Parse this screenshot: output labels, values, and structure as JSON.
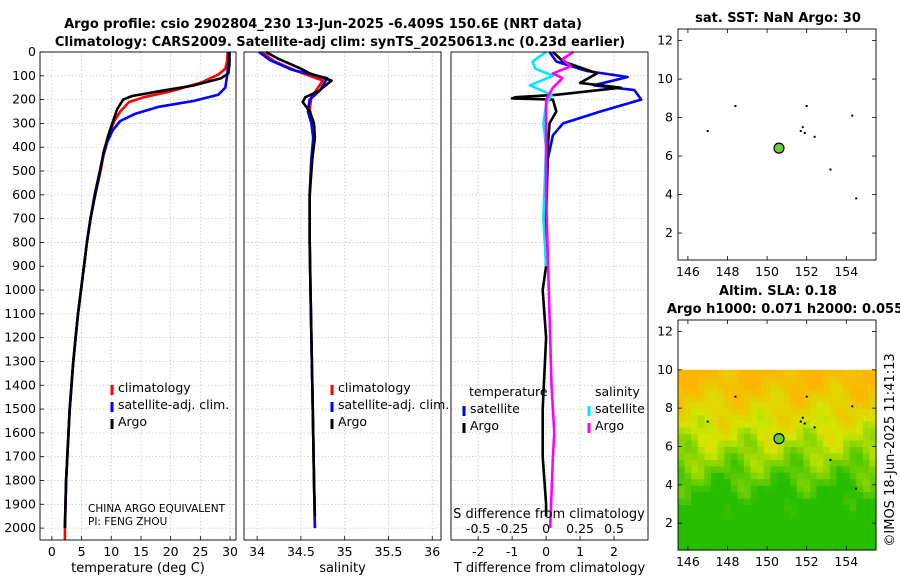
{
  "titles": {
    "line1": "Argo profile: csio 2902804_230 13-Jun-2025 -6.409S 150.6E (NRT data)",
    "line2": "Climatology: CARS2009. Satellite-adj clim: synTS_20250613.nc (0.23d earlier)"
  },
  "stamp": "©IMOS 18-Jun-2025 11:41:13",
  "colors": {
    "climatology": "#ff0000",
    "satellite": "#0000ff",
    "argo": "#000000",
    "sal_satellite": "#00e5ff",
    "sal_argo": "#ff00ff"
  },
  "chart_data": [
    {
      "type": "line",
      "name": "temperature-profile",
      "xlabel": "temperature (deg C)",
      "ylabel": "",
      "xlim": [
        -2,
        31
      ],
      "ylim": [
        2050,
        0
      ],
      "xticks": [
        "0",
        "5",
        "10",
        "15",
        "20",
        "25",
        "30"
      ],
      "yticks": [
        "0",
        "100",
        "200",
        "300",
        "400",
        "500",
        "600",
        "700",
        "800",
        "900",
        "1000",
        "1100",
        "1200",
        "1300",
        "1400",
        "1500",
        "1600",
        "1700",
        "1800",
        "1900",
        "2000"
      ],
      "legend": [
        "climatology",
        "satellite-adj. clim.",
        "Argo"
      ],
      "annotations": [
        "CHINA ARGO EQUIVALENT",
        "PI: FENG ZHOU"
      ],
      "series": [
        {
          "name": "climatology",
          "points": [
            [
              29.6,
              0
            ],
            [
              29.5,
              40
            ],
            [
              29.2,
              70
            ],
            [
              28,
              95
            ],
            [
              25,
              130
            ],
            [
              20,
              165
            ],
            [
              15.5,
              190
            ],
            [
              13,
              210
            ],
            [
              11.5,
              250
            ],
            [
              10.5,
              290
            ],
            [
              9.6,
              350
            ],
            [
              8.8,
              420
            ],
            [
              8.2,
              500
            ],
            [
              7.3,
              600
            ],
            [
              6.5,
              700
            ],
            [
              5.9,
              800
            ],
            [
              5.4,
              900
            ],
            [
              4.9,
              1000
            ],
            [
              4.4,
              1100
            ],
            [
              4.0,
              1200
            ],
            [
              3.6,
              1300
            ],
            [
              3.3,
              1400
            ],
            [
              3.0,
              1500
            ],
            [
              2.8,
              1600
            ],
            [
              2.6,
              1700
            ],
            [
              2.4,
              1800
            ],
            [
              2.3,
              1900
            ],
            [
              2.2,
              2000
            ],
            [
              2.2,
              2050
            ]
          ]
        },
        {
          "name": "satellite-adj. clim.",
          "points": [
            [
              29.8,
              0
            ],
            [
              29.7,
              50
            ],
            [
              29.5,
              100
            ],
            [
              29.2,
              150
            ],
            [
              28,
              180
            ],
            [
              24,
              205
            ],
            [
              18,
              230
            ],
            [
              14,
              260
            ],
            [
              11.5,
              290
            ],
            [
              10.2,
              330
            ],
            [
              9.3,
              380
            ],
            [
              8.6,
              440
            ],
            [
              7.9,
              520
            ],
            [
              7.2,
              600
            ],
            [
              6.5,
              700
            ],
            [
              5.9,
              800
            ],
            [
              5.4,
              900
            ],
            [
              4.9,
              1000
            ],
            [
              4.4,
              1100
            ],
            [
              4.0,
              1200
            ],
            [
              3.6,
              1300
            ],
            [
              3.3,
              1400
            ],
            [
              3.0,
              1500
            ],
            [
              2.8,
              1600
            ],
            [
              2.6,
              1700
            ],
            [
              2.4,
              1800
            ],
            [
              2.3,
              1900
            ],
            [
              2.2,
              2000
            ]
          ]
        },
        {
          "name": "Argo",
          "points": [
            [
              29.9,
              0
            ],
            [
              29.9,
              50
            ],
            [
              29.7,
              90
            ],
            [
              28.5,
              110
            ],
            [
              24,
              140
            ],
            [
              18,
              165
            ],
            [
              13.5,
              185
            ],
            [
              12,
              200
            ],
            [
              11,
              240
            ],
            [
              10.3,
              290
            ],
            [
              9.5,
              350
            ],
            [
              8.7,
              420
            ],
            [
              8.1,
              500
            ],
            [
              7.3,
              600
            ],
            [
              6.5,
              700
            ],
            [
              5.9,
              800
            ],
            [
              5.4,
              900
            ],
            [
              4.9,
              1000
            ],
            [
              4.4,
              1100
            ],
            [
              4.0,
              1200
            ],
            [
              3.6,
              1300
            ],
            [
              3.3,
              1400
            ],
            [
              3.0,
              1500
            ],
            [
              2.8,
              1600
            ],
            [
              2.6,
              1700
            ],
            [
              2.4,
              1800
            ],
            [
              2.3,
              1900
            ],
            [
              2.2,
              2000
            ]
          ]
        }
      ]
    },
    {
      "type": "line",
      "name": "salinity-profile",
      "xlabel": "salinity",
      "xlim": [
        33.85,
        36.1
      ],
      "ylim": [
        2050,
        0
      ],
      "xticks": [
        "34",
        "34.5",
        "35",
        "35.5",
        "36"
      ],
      "legend": [
        "climatology",
        "satellite-adj. clim.",
        "Argo"
      ],
      "series": [
        {
          "name": "climatology",
          "points": [
            [
              34.05,
              0
            ],
            [
              34.2,
              40
            ],
            [
              34.45,
              80
            ],
            [
              34.75,
              120
            ],
            [
              34.62,
              190
            ],
            [
              34.6,
              240
            ],
            [
              34.63,
              290
            ],
            [
              34.65,
              350
            ],
            [
              34.62,
              450
            ],
            [
              34.6,
              600
            ],
            [
              34.6,
              800
            ],
            [
              34.61,
              1000
            ],
            [
              34.62,
              1200
            ],
            [
              34.63,
              1400
            ],
            [
              34.64,
              1600
            ],
            [
              34.65,
              1800
            ],
            [
              34.66,
              2000
            ]
          ]
        },
        {
          "name": "satellite-adj. clim.",
          "points": [
            [
              34.02,
              0
            ],
            [
              34.15,
              35
            ],
            [
              34.4,
              75
            ],
            [
              34.8,
              110
            ],
            [
              34.72,
              160
            ],
            [
              34.6,
              200
            ],
            [
              34.58,
              250
            ],
            [
              34.62,
              300
            ],
            [
              34.64,
              360
            ],
            [
              34.62,
              450
            ],
            [
              34.6,
              600
            ],
            [
              34.6,
              800
            ],
            [
              34.61,
              1000
            ],
            [
              34.62,
              1200
            ],
            [
              34.63,
              1400
            ],
            [
              34.64,
              1600
            ],
            [
              34.65,
              1800
            ],
            [
              34.66,
              2000
            ]
          ]
        },
        {
          "name": "Argo",
          "points": [
            [
              34.1,
              0
            ],
            [
              34.25,
              30
            ],
            [
              34.5,
              70
            ],
            [
              34.6,
              90
            ],
            [
              34.85,
              120
            ],
            [
              34.7,
              165
            ],
            [
              34.55,
              190
            ],
            [
              34.52,
              210
            ],
            [
              34.6,
              250
            ],
            [
              34.65,
              300
            ],
            [
              34.66,
              360
            ],
            [
              34.63,
              450
            ],
            [
              34.6,
              600
            ],
            [
              34.6,
              800
            ],
            [
              34.61,
              1000
            ],
            [
              34.62,
              1200
            ],
            [
              34.63,
              1400
            ],
            [
              34.64,
              1600
            ],
            [
              34.65,
              1800
            ],
            [
              34.66,
              1950
            ]
          ]
        }
      ]
    },
    {
      "type": "line",
      "name": "difference-profile",
      "xlabel": "T difference from climatology",
      "xlabel_top": "S difference from climatology",
      "xlim": [
        -2.8,
        3.0
      ],
      "ylim": [
        2050,
        0
      ],
      "xticks": [
        "-2",
        "-1",
        "0",
        "1",
        "2"
      ],
      "s_ticks": [
        "-0.5",
        "-0.25",
        "0",
        "0.25",
        "0.5"
      ],
      "s_scale": 4,
      "legend_titles": [
        "temperature",
        "salinity"
      ],
      "legend_t": [
        "satellite",
        "Argo"
      ],
      "legend_s": [
        "satellite",
        "Argo"
      ],
      "series": [
        {
          "name": "T satellite",
          "points": [
            [
              0.1,
              0
            ],
            [
              0.3,
              40
            ],
            [
              1.2,
              80
            ],
            [
              2.4,
              105
            ],
            [
              1.4,
              140
            ],
            [
              2.6,
              160
            ],
            [
              2.8,
              200
            ],
            [
              1.6,
              250
            ],
            [
              0.5,
              300
            ],
            [
              0.2,
              350
            ],
            [
              0.05,
              450
            ],
            [
              0,
              700
            ],
            [
              0,
              900
            ]
          ]
        },
        {
          "name": "T Argo",
          "points": [
            [
              0.2,
              0
            ],
            [
              0.5,
              40
            ],
            [
              1.5,
              90
            ],
            [
              1.0,
              130
            ],
            [
              2.2,
              150
            ],
            [
              0.3,
              180
            ],
            [
              -0.9,
              190
            ],
            [
              -1.0,
              195
            ],
            [
              0.2,
              200
            ],
            [
              0.3,
              250
            ],
            [
              0.1,
              300
            ],
            [
              0.05,
              400
            ],
            [
              0,
              600
            ],
            [
              0,
              900
            ],
            [
              -0.1,
              1000
            ],
            [
              0,
              1200
            ],
            [
              -0.1,
              1500
            ],
            [
              -0.1,
              1700
            ],
            [
              0,
              1900
            ],
            [
              0,
              1950
            ]
          ]
        },
        {
          "name": "S satellite",
          "points": [
            [
              0,
              0
            ],
            [
              -0.1,
              40
            ],
            [
              -0.08,
              70
            ],
            [
              0.05,
              100
            ],
            [
              -0.12,
              140
            ],
            [
              0.04,
              180
            ],
            [
              0,
              220
            ],
            [
              -0.02,
              300
            ],
            [
              0,
              400
            ],
            [
              -0.02,
              700
            ],
            [
              0,
              900
            ]
          ]
        },
        {
          "name": "S Argo",
          "points": [
            [
              0.2,
              0
            ],
            [
              0.12,
              30
            ],
            [
              0.18,
              60
            ],
            [
              0.05,
              90
            ],
            [
              0.12,
              110
            ],
            [
              0.05,
              150
            ],
            [
              0,
              200
            ],
            [
              0,
              300
            ],
            [
              0,
              600
            ],
            [
              0.02,
              1000
            ],
            [
              0.04,
              1400
            ],
            [
              0.06,
              1600
            ],
            [
              0.05,
              1700
            ],
            [
              0.03,
              2000
            ]
          ]
        }
      ]
    },
    {
      "type": "scatter",
      "name": "sst-map",
      "title": "sat. SST: NaN Argo: 30",
      "xlim": [
        145.5,
        155.5
      ],
      "ylim": [
        0.6,
        12.6
      ],
      "xticks": [
        "146",
        "148",
        "150",
        "152",
        "154"
      ],
      "yticks": [
        "2",
        "4",
        "6",
        "8",
        "10",
        "12"
      ],
      "float_position": [
        150.6,
        6.41
      ],
      "islands": [
        [
          147,
          7.3
        ],
        [
          148.4,
          8.6
        ],
        [
          152,
          8.6
        ],
        [
          151.8,
          7.5
        ],
        [
          151.7,
          7.3
        ],
        [
          151.9,
          7.2
        ],
        [
          152.4,
          7.0
        ],
        [
          154.3,
          8.1
        ],
        [
          153.2,
          5.3
        ],
        [
          154.5,
          3.8
        ]
      ]
    },
    {
      "type": "heatmap",
      "name": "sla-map",
      "title_line1": "Altim. SLA: 0.18",
      "title_line2": "Argo h1000: 0.071 h2000: 0.055",
      "xlim": [
        145.5,
        155.5
      ],
      "ylim": [
        0.6,
        12.6
      ],
      "xticks": [
        "146",
        "148",
        "150",
        "152",
        "154"
      ],
      "yticks": [
        "2",
        "4",
        "6",
        "8",
        "10",
        "12"
      ],
      "data_ymax": 10,
      "float_position": [
        150.6,
        6.41
      ],
      "islands": [
        [
          147,
          7.3
        ],
        [
          148.4,
          8.6
        ],
        [
          152,
          8.6
        ],
        [
          151.8,
          7.5
        ],
        [
          151.7,
          7.3
        ],
        [
          151.9,
          7.2
        ],
        [
          152.4,
          7.0
        ],
        [
          154.3,
          8.1
        ],
        [
          153.2,
          5.3
        ],
        [
          154.5,
          3.8
        ]
      ]
    }
  ]
}
